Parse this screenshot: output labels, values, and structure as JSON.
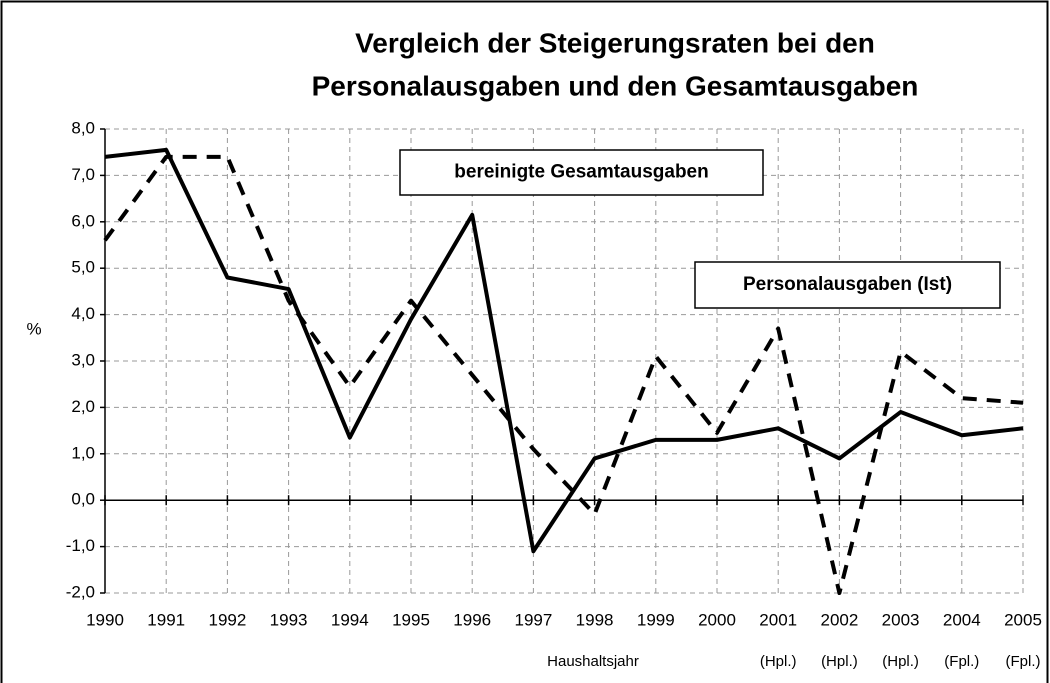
{
  "chart_data": {
    "type": "line",
    "title": [
      "Vergleich der Steigerungsraten bei den",
      "Personalausgaben und den Gesamtausgaben"
    ],
    "y_label": "%",
    "x_label": "Haushaltsjahr",
    "categories": [
      "1990",
      "1991",
      "1992",
      "1993",
      "1994",
      "1995",
      "1996",
      "1997",
      "1998",
      "1999",
      "2000",
      "2001",
      "2002",
      "2003",
      "2004",
      "2005"
    ],
    "category_notes": [
      null,
      null,
      null,
      null,
      null,
      null,
      null,
      null,
      null,
      null,
      null,
      "(Hpl.)",
      "(Hpl.)",
      "(Hpl.)",
      "(Fpl.)",
      "(Fpl.)"
    ],
    "series": [
      {
        "name": "Personalausgaben (Ist)",
        "color": "#000000",
        "dash": false,
        "values": [
          7.4,
          7.55,
          4.8,
          4.55,
          1.35,
          3.9,
          6.15,
          -1.1,
          0.9,
          1.3,
          1.3,
          1.55,
          0.9,
          1.9,
          1.4,
          1.55
        ]
      },
      {
        "name": "bereinigte Gesamtausgaben",
        "color": "#000000",
        "dash": true,
        "values": [
          5.6,
          7.4,
          7.4,
          4.3,
          2.45,
          4.3,
          2.7,
          1.1,
          -0.3,
          3.1,
          1.45,
          3.7,
          -2.0,
          3.2,
          2.2,
          2.1
        ]
      }
    ],
    "ylim": [
      -2,
      8
    ],
    "yticks": [
      {
        "value": -2,
        "label": "-2,0"
      },
      {
        "value": -1,
        "label": "-1,0"
      },
      {
        "value": 0,
        "label": "0,0"
      },
      {
        "value": 1,
        "label": "1,0"
      },
      {
        "value": 2,
        "label": "2,0"
      },
      {
        "value": 3,
        "label": "3,0"
      },
      {
        "value": 4,
        "label": "4,0"
      },
      {
        "value": 5,
        "label": "5,0"
      },
      {
        "value": 6,
        "label": "6,0"
      },
      {
        "value": 7,
        "label": "7,0"
      },
      {
        "value": 8,
        "label": "8,0"
      }
    ],
    "grid": true
  }
}
